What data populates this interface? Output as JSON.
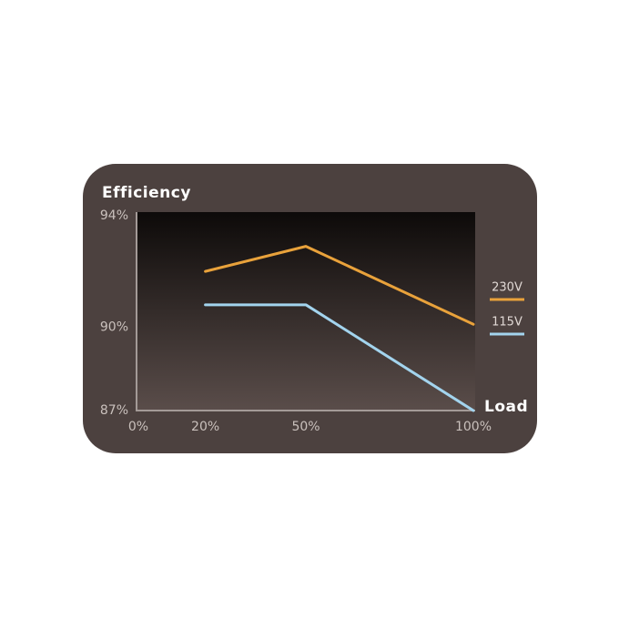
{
  "chart_data": {
    "type": "line",
    "title": "Efficiency",
    "x_label": "Load",
    "x": [
      20,
      50,
      100
    ],
    "xlim": [
      0,
      100
    ],
    "xticks": [
      {
        "value": 0,
        "label": "0%"
      },
      {
        "value": 20,
        "label": "20%"
      },
      {
        "value": 50,
        "label": "50%"
      },
      {
        "value": 100,
        "label": "100%"
      }
    ],
    "ylim": [
      87,
      94
    ],
    "yticks": [
      {
        "value": 94,
        "label": "94%"
      },
      {
        "value": 90,
        "label": "90%"
      },
      {
        "value": 87,
        "label": "87%"
      }
    ],
    "series": [
      {
        "name": "230V",
        "color": "#e9a23b",
        "values": [
          92.0,
          92.9,
          90.1
        ]
      },
      {
        "name": "115V",
        "color": "#a3d4ee",
        "values": [
          90.8,
          90.8,
          87.0
        ]
      }
    ]
  }
}
